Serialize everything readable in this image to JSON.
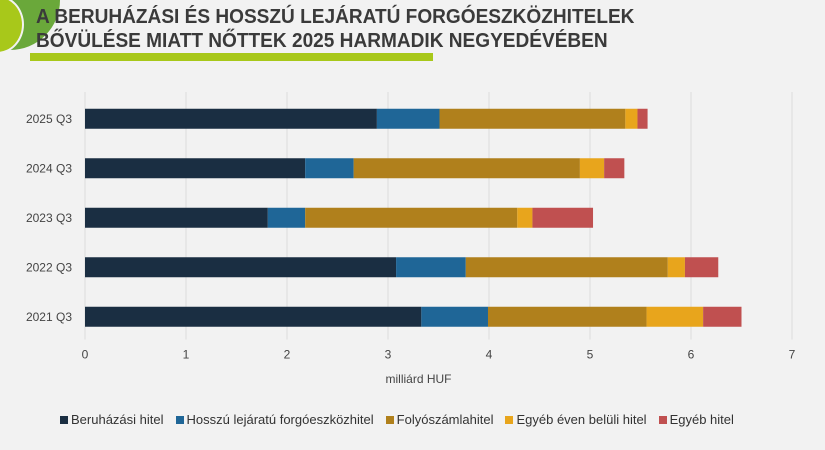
{
  "title_lines": [
    "A BERUHÁZÁSI ÉS HOSSZÚ LEJÁRATÚ FORGÓESZKÖZHITELEK",
    "BŐVÜLÉSE MIATT NŐTTEK 2025 HARMADIK NEGYEDÉVÉBEN"
  ],
  "chart_data": {
    "type": "bar",
    "orientation": "horizontal",
    "stacked": true,
    "categories": [
      "2025 Q3",
      "2024 Q3",
      "2023 Q3",
      "2022 Q3",
      "2021 Q3"
    ],
    "xlabel": "milliárd HUF",
    "xlim": [
      0,
      7
    ],
    "xticks": [
      "0",
      "1",
      "2",
      "3",
      "4",
      "5",
      "6",
      "7"
    ],
    "grid": "vertical",
    "legend_position": "bottom",
    "series": [
      {
        "name": "Beruházási hitel",
        "color": "#1a2e42",
        "values": [
          2.89,
          2.18,
          1.81,
          3.08,
          3.33
        ]
      },
      {
        "name": "Hosszú lejáratú forgóeszközhitel",
        "color": "#1f6697",
        "values": [
          0.62,
          0.48,
          0.37,
          0.69,
          0.66
        ]
      },
      {
        "name": "Folyószámlahitel",
        "color": "#b0801c",
        "values": [
          1.84,
          2.24,
          2.1,
          2.0,
          1.57
        ]
      },
      {
        "name": "Egyéb éven belüli hitel",
        "color": "#e8a51c",
        "values": [
          0.12,
          0.24,
          0.15,
          0.17,
          0.56
        ]
      },
      {
        "name": "Egyéb hitel",
        "color": "#c05050",
        "values": [
          0.1,
          0.2,
          0.6,
          0.33,
          0.38
        ]
      }
    ]
  }
}
